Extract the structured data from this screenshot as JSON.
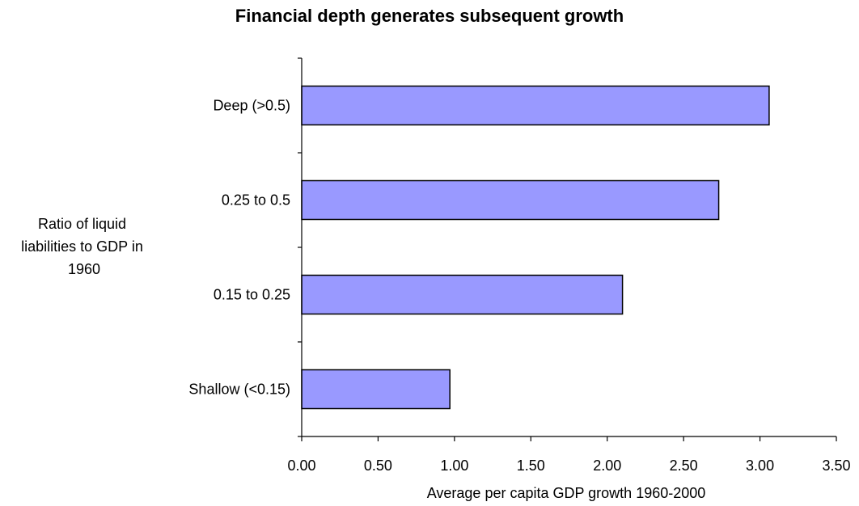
{
  "chart_data": {
    "type": "bar",
    "orientation": "horizontal",
    "title": "Financial depth generates subsequent growth",
    "xlabel": "Average per capita GDP growth 1960-2000",
    "ylabel_lines": [
      "Ratio of liquid",
      "liabilities to GDP in",
      "1960"
    ],
    "categories": [
      "Deep (>0.5)",
      "0.25 to 0.5",
      "0.15 to 0.25",
      "Shallow (<0.15)"
    ],
    "values": [
      3.06,
      2.73,
      2.1,
      0.97
    ],
    "xlim": [
      0,
      3.5
    ],
    "xticks": [
      "0.00",
      "0.50",
      "1.00",
      "1.50",
      "2.00",
      "2.50",
      "3.00",
      "3.50"
    ],
    "grid": false,
    "legend": "none",
    "colors": {
      "bar_fill": "#9999ff",
      "bar_stroke": "#000000",
      "axis": "#000000"
    }
  }
}
